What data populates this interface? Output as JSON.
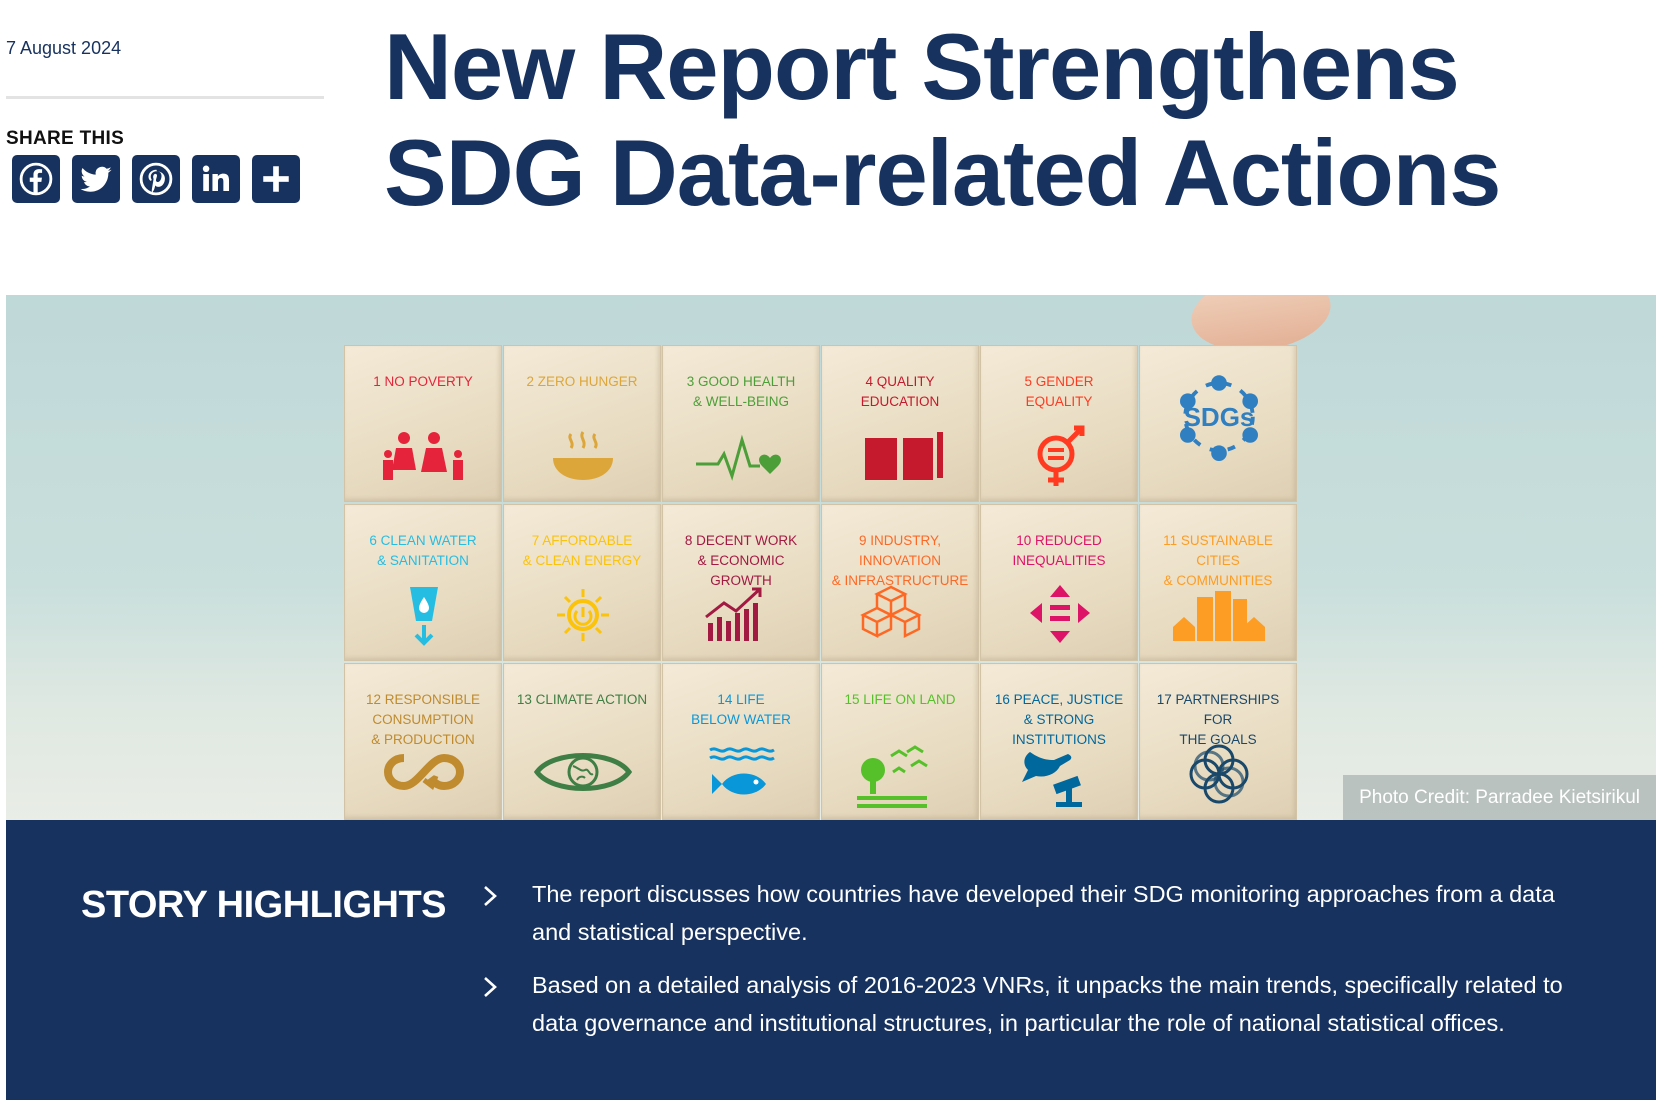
{
  "article": {
    "date": "7 August 2024",
    "title_line1": "New Report Strengthens",
    "title_line2": "SDG Data-related Actions"
  },
  "share": {
    "label": "SHARE THIS",
    "buttons": [
      {
        "name": "facebook",
        "icon": "facebook-icon"
      },
      {
        "name": "twitter",
        "icon": "twitter-icon"
      },
      {
        "name": "pinterest",
        "icon": "pinterest-icon"
      },
      {
        "name": "linkedin",
        "icon": "linkedin-icon"
      },
      {
        "name": "more",
        "icon": "plus-icon"
      }
    ],
    "brand_color": "#17325f"
  },
  "photo": {
    "credit": "Photo Credit: Parradee Kietsirikul",
    "blocks": [
      {
        "label": "1 NO POVERTY",
        "color": "#e5243b",
        "icon": "family-icon"
      },
      {
        "label": "2 ZERO HUNGER",
        "color": "#dda63a",
        "icon": "bowl-icon"
      },
      {
        "label": "3 GOOD HEALTH\n& WELL-BEING",
        "color": "#4c9f38",
        "icon": "heartbeat-icon"
      },
      {
        "label": "4 QUALITY\nEDUCATION",
        "color": "#c5192d",
        "icon": "book-icon"
      },
      {
        "label": "5 GENDER\nEQUALITY",
        "color": "#ff3a21",
        "icon": "gender-icon"
      },
      {
        "label": "SDGs",
        "color": "#2f7fc1",
        "icon": "sdgs-icon"
      },
      {
        "label": "6 CLEAN WATER\n& SANITATION",
        "color": "#26bde2",
        "icon": "water-icon"
      },
      {
        "label": "7 AFFORDABLE\n& CLEAN ENERGY",
        "color": "#fcc30b",
        "icon": "sun-icon"
      },
      {
        "label": "8 DECENT WORK\n& ECONOMIC\nGROWTH",
        "color": "#a21942",
        "icon": "growth-chart-icon"
      },
      {
        "label": "9 INDUSTRY,\nINNOVATION\n& INFRASTRUCTURE",
        "color": "#fd6925",
        "icon": "cubes-icon"
      },
      {
        "label": "10 REDUCED\nINEQUALITIES",
        "color": "#dd1367",
        "icon": "arrows-icon"
      },
      {
        "label": "11 SUSTAINABLE CITIES\n& COMMUNITIES",
        "color": "#fd9d24",
        "icon": "city-icon"
      },
      {
        "label": "12 RESPONSIBLE\nCONSUMPTION\n& PRODUCTION",
        "color": "#bf8b2e",
        "icon": "infinity-icon"
      },
      {
        "label": "13 CLIMATE ACTION",
        "color": "#3f7e44",
        "icon": "eye-globe-icon"
      },
      {
        "label": "14 LIFE\nBELOW WATER",
        "color": "#0a97d9",
        "icon": "fish-icon"
      },
      {
        "label": "15 LIFE ON LAND",
        "color": "#56c02b",
        "icon": "tree-birds-icon"
      },
      {
        "label": "16 PEACE, JUSTICE\n& STRONG\nINSTITUTIONS",
        "color": "#00689d",
        "icon": "dove-gavel-icon"
      },
      {
        "label": "17 PARTNERSHIPS FOR\nTHE GOALS",
        "color": "#19486a",
        "icon": "rings-icon"
      }
    ]
  },
  "highlights": {
    "title": "STORY HIGHLIGHTS",
    "items": [
      "The report discusses how countries have developed their SDG monitoring approaches from a data and statistical perspective.",
      "Based on a detailed analysis of 2016-2023 VNRs, it unpacks the main trends, specifically related to data governance and institutional structures, in particular the role of national statistical offices."
    ]
  }
}
